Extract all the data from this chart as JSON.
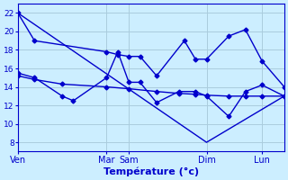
{
  "background_color": "#cceeff",
  "grid_color": "#aaccdd",
  "line_color": "#0000cc",
  "marker": "D",
  "markersize": 2.5,
  "linewidth": 1.0,
  "xlabel": "Température (°c)",
  "xlabel_fontsize": 8,
  "xlabel_color": "#0000cc",
  "ylim": [
    7,
    23
  ],
  "yticks": [
    8,
    10,
    12,
    14,
    16,
    18,
    20,
    22
  ],
  "ytick_fontsize": 6.5,
  "xtick_fontsize": 7,
  "xlim": [
    0,
    24
  ],
  "xtick_positions": [
    0,
    8,
    10,
    17,
    22
  ],
  "xtick_labels": [
    "Ven",
    "Mar",
    "Sam",
    "Dim",
    "Lun"
  ],
  "lines": [
    {
      "x": [
        0,
        1.5,
        8,
        9,
        10,
        11,
        12.5,
        15,
        16,
        17,
        19,
        20.5,
        22,
        24
      ],
      "y": [
        22,
        19,
        17.8,
        17.5,
        17.3,
        17.3,
        15.2,
        19.0,
        17.0,
        17.0,
        19.5,
        20.2,
        16.8,
        14.0
      ],
      "has_marker": true
    },
    {
      "x": [
        0,
        1.5,
        4,
        5,
        8,
        9,
        10,
        11,
        12.5,
        14.5,
        16,
        17,
        19,
        20.5,
        22,
        24
      ],
      "y": [
        15.5,
        15.0,
        13.0,
        12.5,
        15.0,
        17.8,
        14.5,
        14.5,
        12.3,
        13.5,
        13.5,
        13.0,
        10.8,
        13.5,
        14.2,
        13.0
      ],
      "has_marker": true
    },
    {
      "x": [
        0,
        1.5,
        4,
        8,
        10,
        12.5,
        14.5,
        16,
        17,
        19,
        20.5,
        22,
        24
      ],
      "y": [
        15.2,
        14.8,
        14.3,
        14.0,
        13.8,
        13.5,
        13.3,
        13.2,
        13.1,
        13.0,
        13.0,
        13.0,
        13.0
      ],
      "has_marker": true
    },
    {
      "x": [
        0,
        17,
        24
      ],
      "y": [
        22,
        8,
        13.0
      ],
      "has_marker": false
    }
  ]
}
